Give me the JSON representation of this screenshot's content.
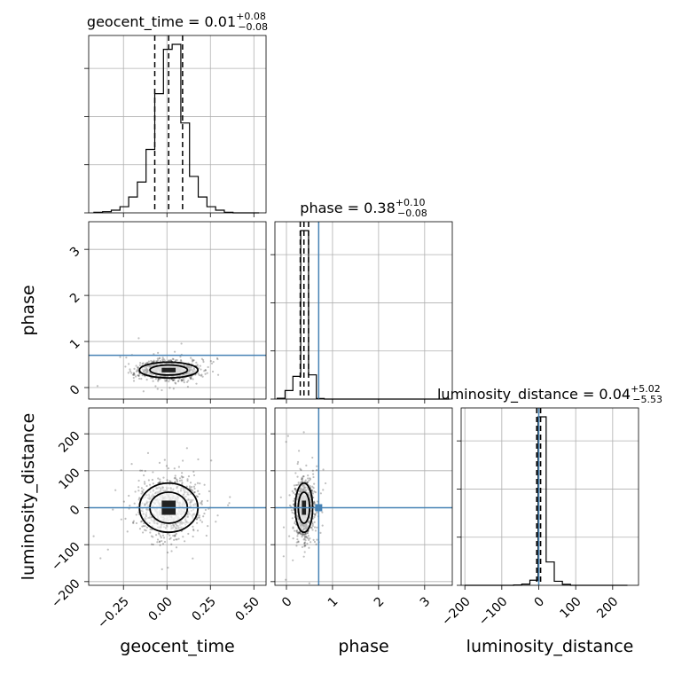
{
  "chart_data": {
    "type": "corner",
    "parameters": [
      "geocent_time",
      "phase",
      "luminosity_distance"
    ],
    "axis_labels": {
      "geocent_time": "geocent_time",
      "phase": "phase",
      "luminosity_distance": "luminosity_distance"
    },
    "ranges": {
      "geocent_time": [
        -0.45,
        0.57
      ],
      "phase": [
        -0.25,
        3.6
      ],
      "luminosity_distance": [
        -210,
        270
      ]
    },
    "ticks": {
      "geocent_time": [
        -0.25,
        0.0,
        0.25,
        0.5
      ],
      "phase": [
        0,
        1,
        2,
        3
      ],
      "luminosity_distance": [
        -200,
        -100,
        0,
        100,
        200
      ]
    },
    "tick_labels": {
      "geocent_time": [
        "−0.25",
        "0.00",
        "0.25",
        "0.50"
      ],
      "phase": [
        "0",
        "1",
        "2",
        "3"
      ],
      "luminosity_distance": [
        "−200",
        "−100",
        "0",
        "100",
        "200"
      ]
    },
    "titles": [
      {
        "param": "geocent_time",
        "prefix": "geocent_time = 0.01",
        "sup": "+0.08",
        "sub": "−0.08"
      },
      {
        "param": "phase",
        "prefix": "phase = 0.38",
        "sup": "+0.10",
        "sub": "−0.08"
      },
      {
        "param": "luminosity_distance",
        "prefix": "luminosity_distance = 0.04",
        "sup": "+5.02",
        "sub": "−5.53"
      }
    ],
    "quantiles": {
      "geocent_time": [
        -0.07,
        0.01,
        0.09
      ],
      "phase": [
        0.3,
        0.38,
        0.48
      ],
      "luminosity_distance": [
        -5.5,
        0.04,
        5.06
      ]
    },
    "truths": {
      "geocent_time": null,
      "phase": 0.7,
      "luminosity_distance": 0
    },
    "histograms": {
      "geocent_time": {
        "edges": [
          -0.42,
          -0.37,
          -0.32,
          -0.27,
          -0.22,
          -0.17,
          -0.12,
          -0.07,
          -0.02,
          0.03,
          0.08,
          0.13,
          0.18,
          0.23,
          0.28,
          0.33,
          0.38,
          0.43,
          0.48,
          0.53
        ],
        "counts": [
          0.2,
          0.4,
          0.9,
          2.1,
          5.4,
          10.5,
          21.6,
          40.6,
          55.7,
          57.4,
          30.6,
          12.4,
          5.4,
          2.1,
          0.9,
          0.2,
          0,
          0,
          0
        ]
      },
      "phase": {
        "edges": [
          -0.2,
          -0.03,
          0.14,
          0.31,
          0.48,
          0.65,
          0.82,
          0.99,
          1.16,
          1.33,
          1.5,
          1.67,
          1.84,
          2.01,
          2.18,
          2.35,
          2.52,
          2.69,
          2.86,
          3.03,
          3.2,
          3.37,
          3.54
        ],
        "counts": [
          0.4,
          4.5,
          12.0,
          89.0,
          12.8,
          0.3,
          0,
          0,
          0,
          0,
          0,
          0,
          0,
          0,
          0,
          0,
          0,
          0,
          0,
          0,
          0,
          0
        ]
      },
      "luminosity_distance": {
        "edges": [
          -200,
          -178,
          -156,
          -134,
          -112,
          -90,
          -68,
          -46,
          -24,
          -2,
          20,
          42,
          64,
          86,
          108,
          130,
          152,
          174,
          196,
          218,
          240
        ],
        "counts": [
          0,
          0,
          0,
          0,
          0,
          0,
          0.2,
          0.6,
          2.5,
          83.0,
          11.5,
          2.0,
          0.5,
          0,
          0,
          0,
          0,
          0,
          0,
          0
        ]
      }
    },
    "sample_spread": {
      "geocent_time": {
        "mean": 0.01,
        "sd": 0.08
      },
      "phase": {
        "mean": 0.38,
        "sd": 0.09
      },
      "luminosity_distance": {
        "mean": 0.04,
        "sd": 35
      }
    },
    "grid": true,
    "truth_color": "#4682b4",
    "sample_color": "#000000"
  }
}
